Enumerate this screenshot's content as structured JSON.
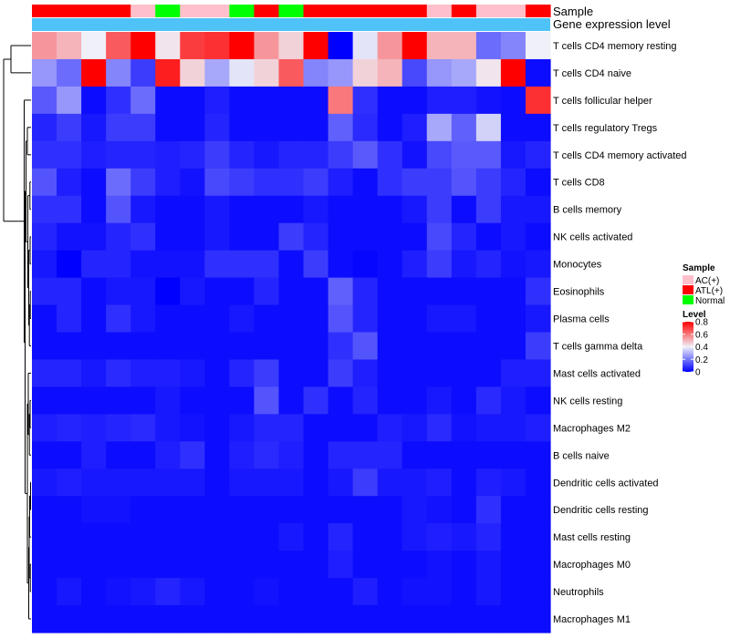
{
  "chart_data": {
    "type": "heatmap",
    "annotation_labels": {
      "sample": "Sample",
      "expression": "Gene expression level"
    },
    "row_labels": [
      "T cells CD4 memory resting",
      "T cells CD4 naive",
      "T cells follicular helper",
      "T cells regulatory  Tregs",
      "T cells CD4 memory activated",
      "T cells CD8",
      "B cells memory",
      "NK cells activated",
      "Monocytes",
      "Eosinophils",
      "Plasma cells",
      "T cells gamma delta",
      "Mast cells activated",
      "NK cells resting",
      "Macrophages M2",
      "B cells naive",
      "Dendritic cells activated",
      "Dendritic cells resting",
      "Mast cells resting",
      "Macrophages M0",
      "Neutrophils",
      "Macrophages M1"
    ],
    "sample_groups": [
      "ATL(+)",
      "ATL(+)",
      "ATL(+)",
      "ATL(+)",
      "AC(+)",
      "Normal",
      "AC(+)",
      "AC(+)",
      "Normal",
      "ATL(+)",
      "Normal",
      "ATL(+)",
      "ATL(+)",
      "ATL(+)",
      "ATL(+)",
      "ATL(+)",
      "AC(+)",
      "ATL(+)",
      "AC(+)",
      "AC(+)",
      "ATL(+)"
    ],
    "values": [
      [
        0.55,
        0.5,
        0.4,
        0.65,
        0.8,
        0.42,
        0.7,
        0.72,
        0.8,
        0.55,
        0.45,
        0.8,
        0.0,
        0.38,
        0.55,
        0.8,
        0.5,
        0.5,
        0.18,
        0.22,
        0.4
      ],
      [
        0.25,
        0.18,
        0.8,
        0.22,
        0.1,
        0.75,
        0.45,
        0.28,
        0.38,
        0.45,
        0.65,
        0.22,
        0.25,
        0.45,
        0.5,
        0.12,
        0.25,
        0.28,
        0.42,
        0.8,
        0.02
      ],
      [
        0.15,
        0.25,
        0.02,
        0.08,
        0.18,
        0.02,
        0.02,
        0.05,
        0.02,
        0.02,
        0.02,
        0.02,
        0.6,
        0.08,
        0.02,
        0.02,
        0.05,
        0.05,
        0.03,
        0.02,
        0.72
      ],
      [
        0.06,
        0.1,
        0.04,
        0.1,
        0.1,
        0.02,
        0.02,
        0.06,
        0.02,
        0.02,
        0.02,
        0.02,
        0.16,
        0.07,
        0.02,
        0.05,
        0.28,
        0.16,
        0.35,
        0.02,
        0.02
      ],
      [
        0.08,
        0.08,
        0.05,
        0.06,
        0.06,
        0.05,
        0.06,
        0.1,
        0.06,
        0.04,
        0.06,
        0.06,
        0.1,
        0.15,
        0.08,
        0.03,
        0.12,
        0.15,
        0.15,
        0.04,
        0.06
      ],
      [
        0.14,
        0.05,
        0.02,
        0.18,
        0.1,
        0.05,
        0.03,
        0.12,
        0.1,
        0.08,
        0.08,
        0.1,
        0.05,
        0.02,
        0.08,
        0.1,
        0.1,
        0.14,
        0.1,
        0.06,
        0.02
      ],
      [
        0.08,
        0.08,
        0.02,
        0.14,
        0.04,
        0.02,
        0.02,
        0.04,
        0.02,
        0.02,
        0.02,
        0.04,
        0.02,
        0.02,
        0.02,
        0.04,
        0.1,
        0.02,
        0.1,
        0.04,
        0.04
      ],
      [
        0.06,
        0.03,
        0.03,
        0.06,
        0.08,
        0.02,
        0.02,
        0.04,
        0.02,
        0.02,
        0.1,
        0.06,
        0.02,
        0.02,
        0.02,
        0.02,
        0.12,
        0.06,
        0.02,
        0.04,
        0.02
      ],
      [
        0.04,
        0.0,
        0.06,
        0.06,
        0.03,
        0.03,
        0.03,
        0.08,
        0.08,
        0.08,
        0.02,
        0.1,
        0.02,
        0.01,
        0.02,
        0.05,
        0.1,
        0.04,
        0.06,
        0.03,
        0.04
      ],
      [
        0.06,
        0.06,
        0.02,
        0.04,
        0.04,
        0.0,
        0.04,
        0.02,
        0.02,
        0.06,
        0.02,
        0.02,
        0.16,
        0.06,
        0.02,
        0.02,
        0.02,
        0.02,
        0.02,
        0.02,
        0.08
      ],
      [
        0.02,
        0.06,
        0.02,
        0.08,
        0.04,
        0.02,
        0.02,
        0.02,
        0.04,
        0.02,
        0.02,
        0.02,
        0.14,
        0.06,
        0.02,
        0.02,
        0.04,
        0.04,
        0.02,
        0.02,
        0.04
      ],
      [
        0.02,
        0.02,
        0.02,
        0.02,
        0.02,
        0.02,
        0.02,
        0.02,
        0.02,
        0.02,
        0.02,
        0.02,
        0.08,
        0.14,
        0.02,
        0.02,
        0.02,
        0.02,
        0.02,
        0.02,
        0.1
      ],
      [
        0.06,
        0.06,
        0.04,
        0.07,
        0.05,
        0.05,
        0.04,
        0.02,
        0.06,
        0.1,
        0.02,
        0.02,
        0.1,
        0.05,
        0.02,
        0.02,
        0.02,
        0.02,
        0.02,
        0.05,
        0.05
      ],
      [
        0.02,
        0.02,
        0.02,
        0.02,
        0.02,
        0.04,
        0.02,
        0.02,
        0.02,
        0.14,
        0.02,
        0.08,
        0.02,
        0.06,
        0.02,
        0.02,
        0.04,
        0.02,
        0.07,
        0.04,
        0.02
      ],
      [
        0.05,
        0.06,
        0.05,
        0.06,
        0.07,
        0.04,
        0.03,
        0.02,
        0.04,
        0.06,
        0.06,
        0.02,
        0.02,
        0.02,
        0.05,
        0.04,
        0.07,
        0.03,
        0.04,
        0.04,
        0.05
      ],
      [
        0.02,
        0.02,
        0.05,
        0.02,
        0.02,
        0.05,
        0.08,
        0.02,
        0.05,
        0.07,
        0.05,
        0.02,
        0.06,
        0.06,
        0.06,
        0.02,
        0.02,
        0.02,
        0.02,
        0.02,
        0.02
      ],
      [
        0.04,
        0.05,
        0.04,
        0.04,
        0.04,
        0.04,
        0.04,
        0.02,
        0.04,
        0.04,
        0.04,
        0.02,
        0.04,
        0.1,
        0.04,
        0.04,
        0.05,
        0.02,
        0.05,
        0.04,
        0.02
      ],
      [
        0.02,
        0.02,
        0.03,
        0.03,
        0.02,
        0.02,
        0.02,
        0.02,
        0.02,
        0.02,
        0.02,
        0.02,
        0.02,
        0.02,
        0.02,
        0.04,
        0.03,
        0.02,
        0.08,
        0.02,
        0.02
      ],
      [
        0.02,
        0.02,
        0.02,
        0.02,
        0.02,
        0.02,
        0.02,
        0.02,
        0.02,
        0.02,
        0.04,
        0.02,
        0.06,
        0.02,
        0.02,
        0.04,
        0.05,
        0.04,
        0.06,
        0.02,
        0.02
      ],
      [
        0.02,
        0.02,
        0.02,
        0.02,
        0.02,
        0.02,
        0.02,
        0.02,
        0.02,
        0.02,
        0.02,
        0.02,
        0.05,
        0.02,
        0.02,
        0.02,
        0.03,
        0.02,
        0.04,
        0.02,
        0.02
      ],
      [
        0.02,
        0.04,
        0.02,
        0.03,
        0.04,
        0.06,
        0.04,
        0.02,
        0.02,
        0.03,
        0.02,
        0.02,
        0.02,
        0.05,
        0.02,
        0.03,
        0.03,
        0.02,
        0.04,
        0.02,
        0.02
      ],
      [
        0.02,
        0.02,
        0.02,
        0.02,
        0.02,
        0.02,
        0.02,
        0.02,
        0.02,
        0.02,
        0.02,
        0.02,
        0.02,
        0.02,
        0.02,
        0.02,
        0.02,
        0.02,
        0.02,
        0.02,
        0.02
      ]
    ],
    "color_range": [
      0,
      0.8
    ],
    "colors": {
      "low": "#0000ff",
      "mid": "#f0f0f8",
      "high": "#ff0000"
    },
    "legend": {
      "position": "right",
      "sample_title": "Sample",
      "sample_entries": [
        {
          "label": "AC(+)",
          "color": "#ffc0cb"
        },
        {
          "label": "ATL(+)",
          "color": "#ff0000"
        },
        {
          "label": "Normal",
          "color": "#00ff00"
        }
      ],
      "level_title": "Level",
      "level_ticks": [
        {
          "value": 0.8,
          "label": "0.8"
        },
        {
          "value": 0.6,
          "label": "0.6"
        },
        {
          "value": 0.4,
          "label": "0.4"
        },
        {
          "value": 0.2,
          "label": "0.2"
        },
        {
          "value": 0,
          "label": "0"
        }
      ]
    },
    "expression_annotation_color": "#4fc3f7",
    "row_dendrogram": true
  }
}
